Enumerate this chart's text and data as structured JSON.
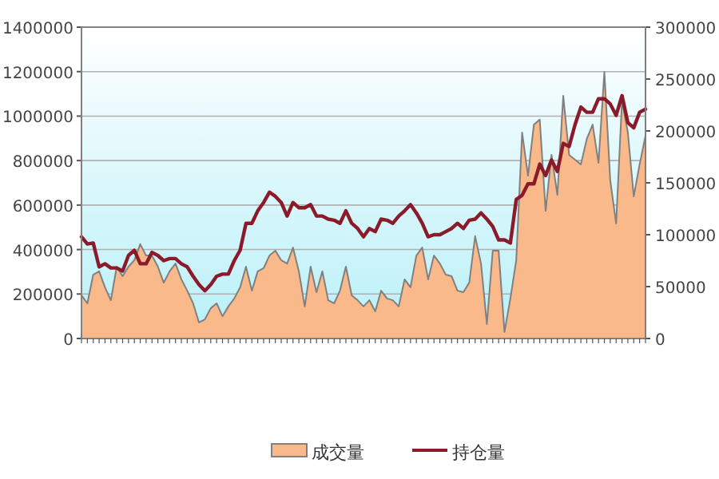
{
  "chart_data": {
    "type": "area",
    "categories": [
      null,
      null,
      null,
      null,
      null,
      null,
      null,
      null,
      null,
      null,
      null,
      null,
      null,
      null,
      null,
      null,
      null,
      null,
      null,
      null,
      null,
      null,
      null,
      null,
      null,
      null,
      null,
      null,
      null,
      null,
      null,
      null,
      null,
      null,
      null,
      null,
      null,
      null,
      null,
      null,
      null,
      null,
      null,
      null,
      null,
      null,
      null,
      null,
      null,
      null,
      null,
      null,
      null,
      null,
      null,
      null,
      null,
      null,
      null,
      null,
      null,
      null,
      null,
      null,
      null,
      null,
      null,
      null,
      null,
      null,
      null,
      null,
      null,
      null,
      null,
      null,
      null,
      null,
      null,
      null,
      null,
      null,
      null,
      null,
      null,
      null,
      null,
      null,
      null,
      null,
      null,
      null,
      null,
      null,
      null,
      null,
      null
    ],
    "series": [
      {
        "name": "成交量",
        "color": "#f9b98a",
        "values": [
          194000,
          158000,
          287000,
          302000,
          230000,
          172000,
          323000,
          280000,
          323000,
          352000,
          424000,
          373000,
          373000,
          323000,
          251000,
          302000,
          337000,
          266000,
          215000,
          158000,
          72000,
          86000,
          136000,
          158000,
          100000,
          144000,
          180000,
          230000,
          323000,
          215000,
          302000,
          316000,
          373000,
          395000,
          352000,
          337000,
          409000,
          302000,
          144000,
          323000,
          208000,
          302000,
          172000,
          158000,
          215000,
          323000,
          194000,
          172000,
          144000,
          172000,
          122000,
          215000,
          180000,
          172000,
          144000,
          266000,
          230000,
          373000,
          409000,
          266000,
          373000,
          337000,
          287000,
          280000,
          215000,
          208000,
          251000,
          460000,
          337000,
          65000,
          395000,
          395000,
          29000,
          180000,
          352000,
          926000,
          732000,
          962000,
          984000,
          574000,
          826000,
          646000,
          1091000,
          826000,
          804000,
          783000,
          897000,
          962000,
          790000,
          1199000,
          711000,
          517000,
          1070000,
          926000,
          639000,
          783000,
          912000
        ]
      },
      {
        "name": "持仓量",
        "type": "line",
        "axis": "y2",
        "color": "#8b1a2b",
        "values": [
          98000,
          91000,
          92000,
          69000,
          72000,
          68000,
          68000,
          65000,
          80000,
          85000,
          72000,
          72000,
          83000,
          80000,
          75000,
          77000,
          77000,
          72000,
          69000,
          60000,
          52000,
          46000,
          52000,
          60000,
          62000,
          62000,
          75000,
          85000,
          111000,
          111000,
          123000,
          131000,
          141000,
          137000,
          131000,
          118000,
          131000,
          126000,
          126000,
          129000,
          118000,
          118000,
          115000,
          114000,
          111000,
          123000,
          111000,
          106000,
          98000,
          106000,
          103000,
          115000,
          114000,
          111000,
          118000,
          123000,
          129000,
          121000,
          111000,
          98000,
          100000,
          100000,
          103000,
          106000,
          111000,
          106000,
          114000,
          115000,
          121000,
          115000,
          108000,
          95000,
          95000,
          92000,
          134000,
          138000,
          149000,
          149000,
          168000,
          157000,
          172000,
          161000,
          188000,
          185000,
          206000,
          223000,
          218000,
          218000,
          231000,
          231000,
          226000,
          215000,
          234000,
          208000,
          203000,
          218000,
          221000
        ]
      }
    ],
    "ylim": [
      0,
      1400000
    ],
    "yticks": [
      0,
      200000,
      400000,
      600000,
      800000,
      1000000,
      1200000,
      1400000
    ],
    "y2lim": [
      0,
      300000
    ],
    "y2ticks": [
      0,
      50000,
      100000,
      150000,
      200000,
      250000,
      300000
    ],
    "grid": "y",
    "legend": "bottom",
    "marker": "none",
    "line_style": "solid"
  }
}
